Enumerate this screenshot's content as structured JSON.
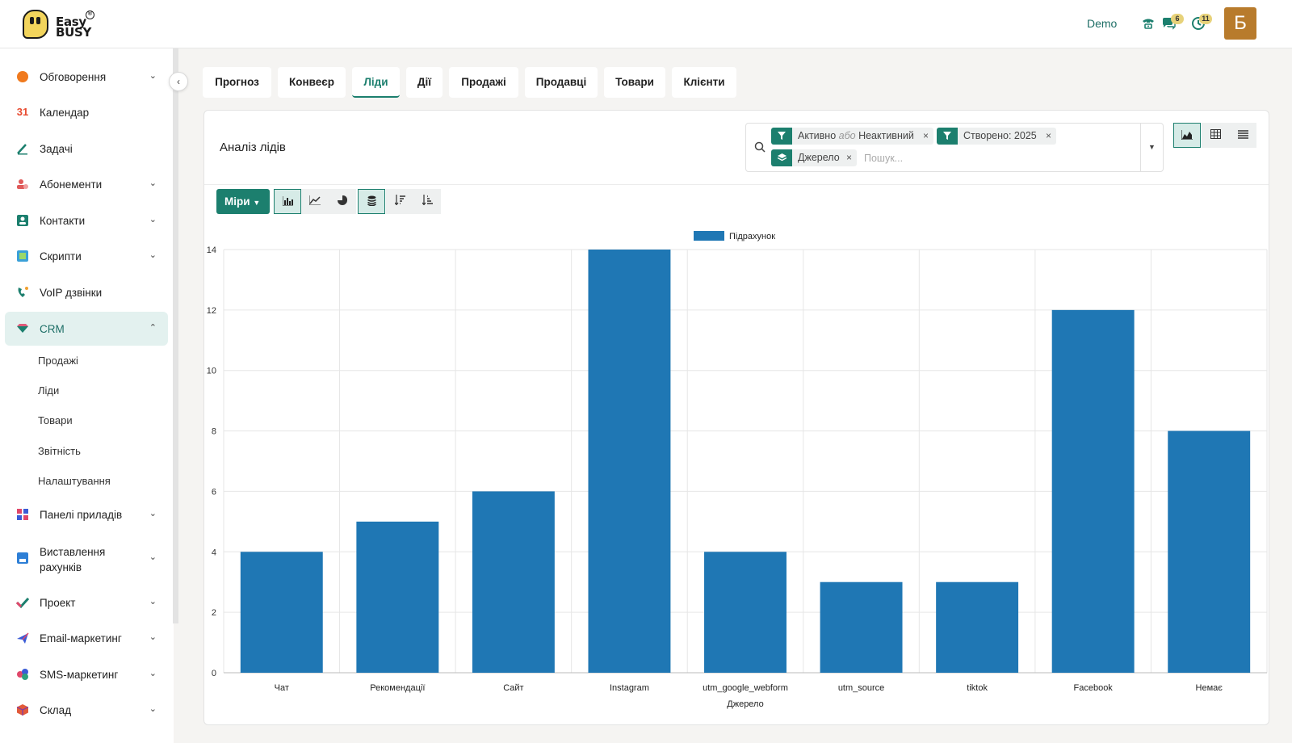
{
  "header": {
    "logo_line1": "Easy",
    "logo_line2": "BUSY",
    "logo_reg": "®",
    "demo_label": "Demo",
    "icons": [
      "phone-icon",
      "chat-icon",
      "activity-clock-icon"
    ],
    "messages_badge": "6",
    "activities_badge": "11",
    "avatar_letter": "Б",
    "avatar_color": "#b87b2c"
  },
  "sidebar": {
    "items": [
      {
        "label": "Обговорення",
        "icon": "discuss-icon",
        "color": "#f07a1e"
      },
      {
        "label": "Календар",
        "icon": "calendar-icon",
        "color": "#e84a2f"
      },
      {
        "label": "Задачі",
        "icon": "tasks-icon",
        "color": "#1c7f6e"
      },
      {
        "label": "Абонементи",
        "icon": "subscriptions-icon",
        "color": "#e05a5a"
      },
      {
        "label": "Контакти",
        "icon": "contacts-icon",
        "color": "#1c7f6e"
      },
      {
        "label": "Скрипти",
        "icon": "scripts-icon",
        "color": "#3aa0d8"
      },
      {
        "label": "VoIP дзвінки",
        "icon": "voip-icon",
        "color": "#1c7f6e"
      },
      {
        "label": "CRM",
        "icon": "crm-icon",
        "color": "#1c7f6e"
      },
      {
        "label": "Панелі приладів",
        "icon": "dashboards-icon",
        "color": "#e0476a"
      },
      {
        "label": "Виставлення рахунків",
        "icon": "invoicing-icon",
        "color": "#2d7fd6"
      },
      {
        "label": "Проект",
        "icon": "project-icon",
        "color": "#1c7f6e"
      },
      {
        "label": "Email-маркетинг",
        "icon": "email-marketing-icon",
        "color": "#3a5bd6"
      },
      {
        "label": "SMS-маркетинг",
        "icon": "sms-marketing-icon",
        "color": "#e0476a"
      },
      {
        "label": "Склад",
        "icon": "inventory-icon",
        "color": "#e25a3a"
      }
    ],
    "crm_sub": [
      "Продажі",
      "Ліди",
      "Товари",
      "Звітність",
      "Налаштування"
    ]
  },
  "tabs": [
    "Прогноз",
    "Конвеєр",
    "Ліди",
    "Дії",
    "Продажі",
    "Продавці",
    "Товари",
    "Клієнти"
  ],
  "active_tab": "Ліди",
  "card": {
    "title": "Аналіз лідів",
    "facets": {
      "f1_a": "Активно",
      "f1_or": "або",
      "f1_b": "Неактивний",
      "f2": "Створено: 2025",
      "f3": "Джерело"
    },
    "search_placeholder": "Пошук...",
    "measures_label": "Міри",
    "accent": "#1c7f6e"
  },
  "chart_data": {
    "type": "bar",
    "categories": [
      "Чат",
      "Рекомендації",
      "Сайт",
      "Instagram",
      "utm_google_webform",
      "utm_source",
      "tiktok",
      "Facebook",
      "Немає"
    ],
    "series": [
      {
        "name": "Підрахунок",
        "values": [
          4,
          5,
          6,
          14,
          4,
          3,
          3,
          12,
          8
        ],
        "color": "#1f77b4"
      }
    ],
    "xlabel": "Джерело",
    "ylabel": "",
    "ylim": [
      0,
      14
    ],
    "yticks": [
      0,
      2,
      4,
      6,
      8,
      10,
      12,
      14
    ],
    "grid": true,
    "legend": "top-center"
  }
}
